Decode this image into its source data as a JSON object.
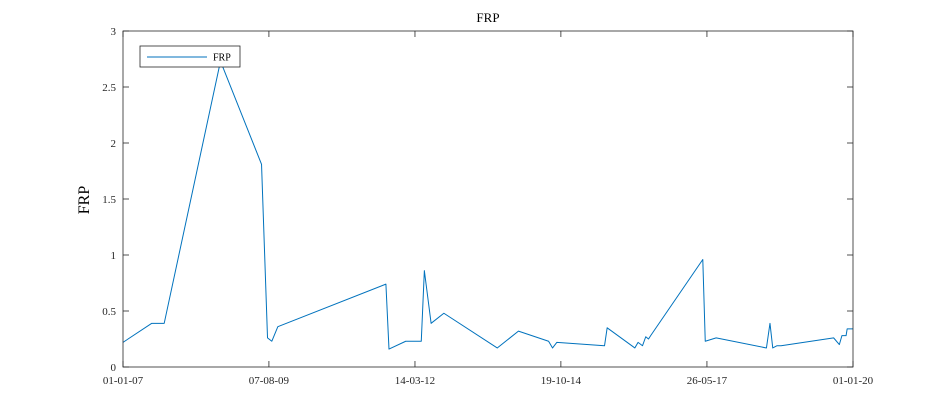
{
  "chart_data": {
    "type": "line",
    "title": "FRP",
    "xlabel": "",
    "ylabel": "FRP",
    "x_tick_labels": [
      "01-01-07",
      "07-08-09",
      "14-03-12",
      "19-10-14",
      "26-05-17",
      "01-01-20"
    ],
    "x_ticks": [
      "2007-01-01",
      "2009-08-07",
      "2012-03-14",
      "2014-10-19",
      "2017-05-26",
      "2020-01-01"
    ],
    "xlim": [
      "2007-01-01",
      "2020-01-01"
    ],
    "ylim": [
      0,
      3
    ],
    "y_ticks": [
      0,
      0.5,
      1,
      1.5,
      2,
      2.5,
      3
    ],
    "y_tick_labels": [
      "0",
      "0.5",
      "1",
      "1.5",
      "2",
      "2.5",
      "3"
    ],
    "grid": false,
    "legend": {
      "placement": "top-left",
      "entries": [
        "FRP"
      ]
    },
    "series": [
      {
        "name": "FRP",
        "color": "#0072bd",
        "x": [
          "2007-01-01",
          "2007-07-07",
          "2007-09-26",
          "2008-09-26",
          "2009-06-20",
          "2009-07-29",
          "2009-08-26",
          "2009-10-04",
          "2011-09-07",
          "2011-09-27",
          "2012-01-14",
          "2012-04-24",
          "2012-05-14",
          "2012-06-27",
          "2012-09-18",
          "2013-08-31",
          "2014-01-16",
          "2014-07-31",
          "2014-08-26",
          "2014-09-23",
          "2015-07-30",
          "2015-08-16",
          "2016-02-12",
          "2016-03-04",
          "2016-04-02",
          "2016-04-23",
          "2016-05-11",
          "2016-05-25",
          "2017-04-29",
          "2017-05-15",
          "2017-07-25",
          "2018-06-17",
          "2018-07-10",
          "2018-07-28",
          "2018-08-25",
          "2018-09-20",
          "2019-08-28",
          "2019-10-04",
          "2019-10-21",
          "2019-11-17",
          "2019-11-24",
          "2020-01-01"
        ],
        "y": [
          0.22,
          0.39,
          0.39,
          2.73,
          1.81,
          0.26,
          0.23,
          0.36,
          0.74,
          0.16,
          0.23,
          0.23,
          0.86,
          0.39,
          0.48,
          0.17,
          0.32,
          0.23,
          0.17,
          0.22,
          0.19,
          0.35,
          0.17,
          0.22,
          0.19,
          0.27,
          0.25,
          0.28,
          0.96,
          0.23,
          0.26,
          0.17,
          0.39,
          0.17,
          0.19,
          0.19,
          0.26,
          0.2,
          0.28,
          0.28,
          0.34,
          0.34
        ]
      }
    ]
  }
}
